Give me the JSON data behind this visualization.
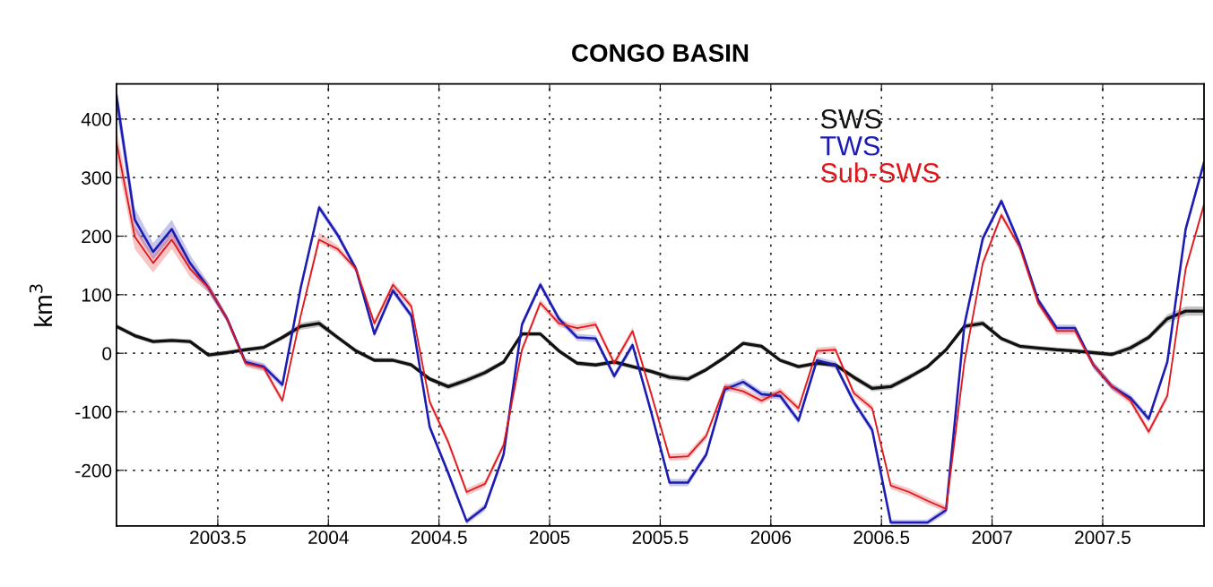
{
  "chart_data": {
    "type": "line",
    "title": "CONGO BASIN",
    "ylabel": "km$^{3}$",
    "x": [
      2003.042,
      2003.125,
      2003.208,
      2003.292,
      2003.375,
      2003.458,
      2003.542,
      2003.625,
      2003.708,
      2003.792,
      2003.875,
      2003.958,
      2004.042,
      2004.125,
      2004.208,
      2004.292,
      2004.375,
      2004.458,
      2004.542,
      2004.625,
      2004.708,
      2004.792,
      2004.875,
      2004.958,
      2005.042,
      2005.125,
      2005.208,
      2005.292,
      2005.375,
      2005.458,
      2005.542,
      2005.625,
      2005.708,
      2005.792,
      2005.875,
      2005.958,
      2006.042,
      2006.125,
      2006.208,
      2006.292,
      2006.375,
      2006.458,
      2006.542,
      2006.625,
      2006.708,
      2006.792,
      2006.875,
      2006.958,
      2007.042,
      2007.125,
      2007.208,
      2007.292,
      2007.375,
      2007.458,
      2007.542,
      2007.625,
      2007.708,
      2007.792,
      2007.875,
      2007.958
    ],
    "series": [
      {
        "name": "SWS",
        "color": "#111111",
        "values": [
          46,
          30,
          20,
          22,
          20,
          -3,
          1,
          6,
          10,
          27,
          46,
          51,
          27,
          4,
          -12,
          -12,
          -20,
          -44,
          -57,
          -46,
          -33,
          -15,
          33,
          33,
          4,
          -17,
          -20,
          -15,
          -23,
          -31,
          -41,
          -44,
          -28,
          -7,
          17,
          12,
          -12,
          -23,
          -17,
          -20,
          -41,
          -60,
          -57,
          -41,
          -23,
          6,
          46,
          51,
          25,
          12,
          9,
          6,
          4,
          1,
          -2,
          9,
          27,
          59,
          72,
          72
        ],
        "lower": [
          42,
          26,
          16,
          18,
          16,
          -7,
          -3,
          2,
          6,
          23,
          40,
          45,
          23,
          0,
          -16,
          -16,
          -24,
          -48,
          -62,
          -51,
          -38,
          -19,
          29,
          29,
          0,
          -21,
          -24,
          -19,
          -27,
          -35,
          -46,
          -49,
          -32,
          -11,
          13,
          8,
          -16,
          -27,
          -21,
          -24,
          -46,
          -65,
          -62,
          -46,
          -27,
          2,
          41,
          46,
          21,
          8,
          5,
          2,
          0,
          -3,
          -6,
          4,
          22,
          52,
          64,
          64
        ],
        "upper": [
          50,
          34,
          24,
          26,
          24,
          1,
          5,
          10,
          14,
          31,
          52,
          57,
          31,
          8,
          -8,
          -8,
          -16,
          -40,
          -52,
          -41,
          -28,
          -11,
          37,
          37,
          8,
          -13,
          -16,
          -11,
          -19,
          -27,
          -36,
          -39,
          -24,
          -3,
          21,
          16,
          -8,
          -19,
          -13,
          -16,
          -36,
          -55,
          -52,
          -36,
          -19,
          10,
          51,
          56,
          29,
          16,
          13,
          10,
          8,
          5,
          2,
          14,
          32,
          66,
          80,
          80
        ]
      },
      {
        "name": "TWS",
        "color": "#1c1cb4",
        "values": [
          440,
          228,
          173,
          212,
          154,
          112,
          59,
          -15,
          -23,
          -54,
          112,
          249,
          202,
          144,
          33,
          107,
          64,
          -126,
          -205,
          -287,
          -263,
          -173,
          49,
          117,
          59,
          27,
          25,
          -39,
          14,
          -99,
          -221,
          -221,
          -173,
          -62,
          -49,
          -70,
          -73,
          -115,
          -12,
          -20,
          -83,
          -131,
          -289,
          -289,
          -289,
          -268,
          49,
          196,
          260,
          186,
          91,
          43,
          43,
          -20,
          -57,
          -76,
          -112,
          -15,
          212,
          326
        ],
        "lower": [
          415,
          210,
          160,
          198,
          142,
          104,
          53,
          -21,
          -29,
          -60,
          106,
          243,
          196,
          138,
          27,
          101,
          58,
          -132,
          -211,
          -292,
          -269,
          -179,
          43,
          111,
          53,
          21,
          19,
          -45,
          8,
          -105,
          -227,
          -227,
          -179,
          -68,
          -55,
          -76,
          -79,
          -121,
          -18,
          -26,
          -89,
          -137,
          -294,
          -294,
          -294,
          -274,
          43,
          190,
          254,
          180,
          85,
          37,
          37,
          -26,
          -63,
          -82,
          -118,
          -21,
          206,
          320
        ],
        "upper": [
          458,
          248,
          188,
          228,
          168,
          120,
          65,
          -9,
          -17,
          -48,
          118,
          255,
          208,
          150,
          39,
          113,
          70,
          -120,
          -199,
          -282,
          -257,
          -167,
          55,
          123,
          65,
          33,
          31,
          -33,
          20,
          -93,
          -215,
          -215,
          -167,
          -56,
          -43,
          -64,
          -67,
          -109,
          -6,
          -14,
          -77,
          -125,
          -284,
          -284,
          -284,
          -262,
          55,
          202,
          266,
          192,
          97,
          49,
          49,
          -14,
          -51,
          -70,
          -106,
          -9,
          218,
          332
        ]
      },
      {
        "name": "Sub-SWS",
        "color": "#e0181c",
        "values": [
          360,
          199,
          154,
          194,
          144,
          112,
          59,
          -17,
          -25,
          -81,
          64,
          194,
          178,
          144,
          51,
          117,
          80,
          -83,
          -152,
          -237,
          -223,
          -157,
          6,
          86,
          51,
          43,
          49,
          -17,
          38,
          -68,
          -178,
          -176,
          -141,
          -57,
          -65,
          -81,
          -65,
          -94,
          4,
          6,
          -68,
          -94,
          -226,
          -237,
          -252,
          -266,
          -15,
          154,
          236,
          181,
          86,
          38,
          38,
          -20,
          -57,
          -81,
          -134,
          -73,
          144,
          254
        ],
        "lower": [
          335,
          178,
          138,
          178,
          130,
          104,
          53,
          -23,
          -31,
          -87,
          58,
          188,
          172,
          138,
          45,
          111,
          74,
          -89,
          -158,
          -243,
          -229,
          -163,
          0,
          80,
          45,
          37,
          43,
          -23,
          32,
          -74,
          -184,
          -182,
          -147,
          -63,
          -71,
          -87,
          -71,
          -100,
          -2,
          0,
          -74,
          -100,
          -232,
          -243,
          -258,
          -272,
          -21,
          148,
          230,
          175,
          80,
          32,
          32,
          -26,
          -63,
          -87,
          -140,
          -79,
          138,
          248
        ],
        "upper": [
          385,
          218,
          168,
          208,
          156,
          120,
          65,
          -11,
          -19,
          -75,
          70,
          206,
          184,
          150,
          57,
          123,
          86,
          -77,
          -146,
          -231,
          -217,
          -151,
          12,
          92,
          57,
          49,
          55,
          -11,
          44,
          -62,
          -172,
          -170,
          -135,
          -51,
          -59,
          -75,
          -59,
          -88,
          10,
          12,
          -62,
          -88,
          -220,
          -231,
          -246,
          -260,
          -9,
          160,
          242,
          187,
          92,
          44,
          44,
          -14,
          -51,
          -75,
          -128,
          -67,
          150,
          260
        ]
      }
    ],
    "xlim": [
      2003.042,
      2007.958
    ],
    "ylim": [
      -295,
      460
    ],
    "xticks": [
      2003.5,
      2004,
      2004.5,
      2005,
      2005.5,
      2006,
      2006.5,
      2007,
      2007.5
    ],
    "yticks": [
      -200,
      -100,
      0,
      100,
      200,
      300,
      400
    ],
    "grid": true,
    "line_style": "solid",
    "legend": "top right"
  }
}
